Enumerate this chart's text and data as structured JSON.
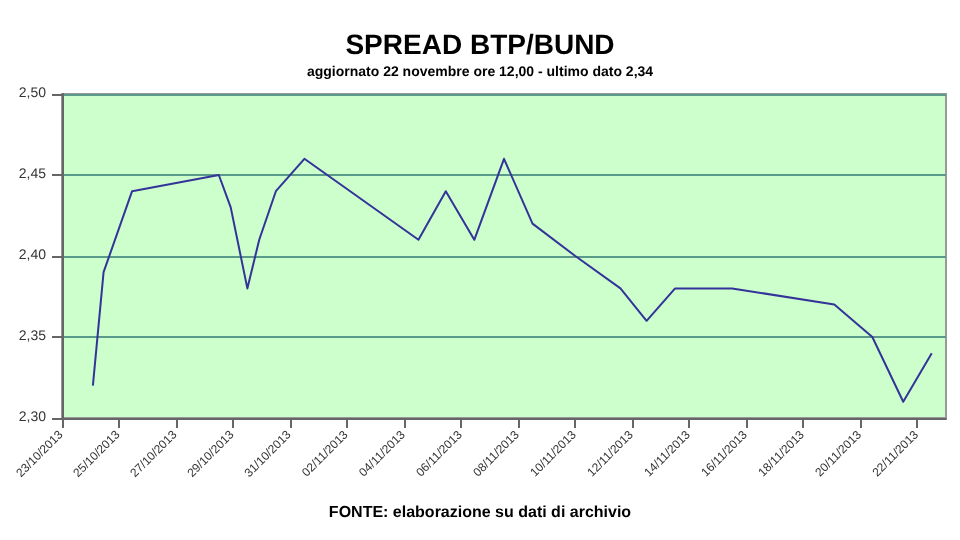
{
  "chart_data": {
    "type": "line",
    "title": "SPREAD BTP/BUND",
    "subtitle": "aggiornato 22 novembre ore 12,00 - ultimo dato 2,34",
    "annotations": [
      "FONTE: elaborazione su dati di archivio"
    ],
    "x": [
      "2013-10-24T02:00",
      "2013-10-24T11:00",
      "2013-10-25T11:00",
      "2013-10-28T12:00",
      "2013-10-28T22:00",
      "2013-10-29T12:00",
      "2013-10-29T22:00",
      "2013-10-30T12:00",
      "2013-10-31T12:00",
      "2013-11-04T12:00",
      "2013-11-05T11:00",
      "2013-11-06T11:00",
      "2013-11-07T12:00",
      "2013-11-08T12:00",
      "2013-11-10T00:00",
      "2013-11-11T14:00",
      "2013-11-12T12:00",
      "2013-11-13T12:00",
      "2013-11-15T12:00",
      "2013-11-19T02:00",
      "2013-11-20T10:00",
      "2013-11-21T12:00",
      "2013-11-22T12:00"
    ],
    "values": [
      2.32,
      2.39,
      2.44,
      2.45,
      2.43,
      2.38,
      2.41,
      2.44,
      2.46,
      2.41,
      2.44,
      2.41,
      2.46,
      2.42,
      2.4,
      2.38,
      2.36,
      2.38,
      2.38,
      2.37,
      2.35,
      2.31,
      2.34
    ],
    "color": "#333399",
    "marker": "none",
    "line_style": "solid",
    "grid": "y",
    "xlim": [
      "2013-10-23",
      "2013-11-23"
    ],
    "xticks": [
      {
        "value": "2013-10-23",
        "label": "23/10/2013"
      },
      {
        "value": "2013-10-25",
        "label": "25/10/2013"
      },
      {
        "value": "2013-10-27",
        "label": "27/10/2013"
      },
      {
        "value": "2013-10-29",
        "label": "29/10/2013"
      },
      {
        "value": "2013-10-31",
        "label": "31/10/2013"
      },
      {
        "value": "2013-11-02",
        "label": "02/11/2013"
      },
      {
        "value": "2013-11-04",
        "label": "04/11/2013"
      },
      {
        "value": "2013-11-06",
        "label": "06/11/2013"
      },
      {
        "value": "2013-11-08",
        "label": "08/11/2013"
      },
      {
        "value": "2013-11-10",
        "label": "10/11/2013"
      },
      {
        "value": "2013-11-12",
        "label": "12/11/2013"
      },
      {
        "value": "2013-11-14",
        "label": "14/11/2013"
      },
      {
        "value": "2013-11-16",
        "label": "16/11/2013"
      },
      {
        "value": "2013-11-18",
        "label": "18/11/2013"
      },
      {
        "value": "2013-11-20",
        "label": "20/11/2013"
      },
      {
        "value": "2013-11-22",
        "label": "22/11/2013"
      }
    ],
    "ylim": [
      2.3,
      2.5
    ],
    "yticks": [
      {
        "value": 2.3,
        "label": "2,30"
      },
      {
        "value": 2.35,
        "label": "2,35"
      },
      {
        "value": 2.4,
        "label": "2,40"
      },
      {
        "value": 2.45,
        "label": "2,45"
      },
      {
        "value": 2.5,
        "label": "2,50"
      }
    ]
  }
}
